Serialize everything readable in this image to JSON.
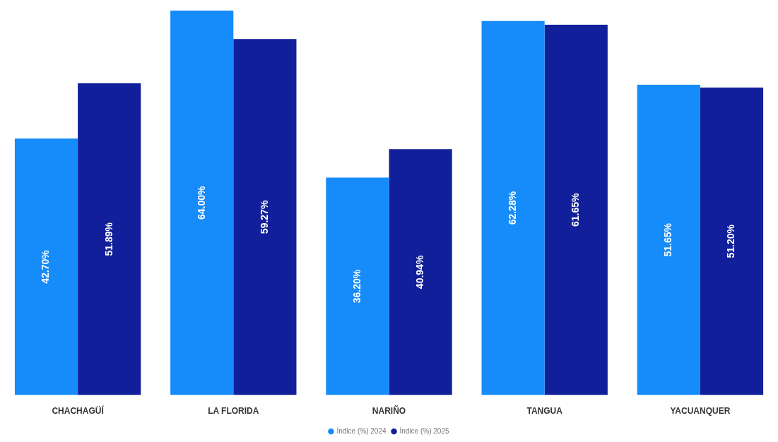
{
  "chart_data": {
    "type": "bar",
    "categories": [
      "CHACHAGÜÍ",
      "LA FLORIDA",
      "NARIÑO",
      "TANGUA",
      "YACUANQUER"
    ],
    "series": [
      {
        "name": "Índice (%) 2024",
        "color": "#168bfa",
        "values": [
          42.7,
          64.0,
          36.2,
          62.28,
          51.65
        ],
        "value_labels": [
          "42.70%",
          "64.00%",
          "36.20%",
          "62.28%",
          "51.65%"
        ]
      },
      {
        "name": "Índice (%) 2025",
        "color": "#121f9a",
        "values": [
          51.89,
          59.27,
          40.94,
          61.65,
          51.2
        ],
        "value_labels": [
          "51.89%",
          "59.27%",
          "40.94%",
          "61.65%",
          "51.20%"
        ]
      }
    ],
    "legend": "bottom",
    "grid": false,
    "tick_labels": "x"
  }
}
